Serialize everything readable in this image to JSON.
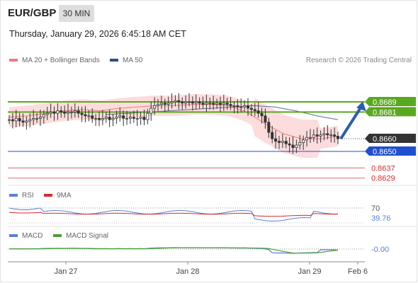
{
  "header": {
    "symbol": "EUR/GBP",
    "timeframe": "30 MIN",
    "datetime": "Thursday, January 29, 2026 6:45:18 AM CET"
  },
  "main_legend": [
    {
      "label": "MA 20 + Bollinger Bands",
      "color": "#f07b7b"
    },
    {
      "label": "MA 50",
      "color": "#2a4d8f"
    }
  ],
  "source": "Research © 2026 Trading Central",
  "rsi_legend": [
    {
      "label": "RSI",
      "color": "#5b7fd6"
    },
    {
      "label": "9MA",
      "color": "#d62a2a"
    }
  ],
  "macd_legend": [
    {
      "label": "MACD",
      "color": "#5b7fd6"
    },
    {
      "label": "MACD Signal",
      "color": "#4aa02c"
    }
  ],
  "chart_data": [
    {
      "type": "candlestick",
      "title": "EUR/GBP 30 MIN",
      "ylim": [
        0.8626,
        0.87
      ],
      "x_ticks": [
        "Jan 27",
        "Jan 28",
        "Jan 29",
        "Feb 6"
      ],
      "price_levels": [
        {
          "value": 0.8689,
          "label": "0.8689",
          "kind": "resistance",
          "color": "#5aa81f"
        },
        {
          "value": 0.8681,
          "label": "0.8681",
          "kind": "resistance",
          "color": "#5aa81f"
        },
        {
          "value": 0.866,
          "label": "0.8660",
          "kind": "last-price",
          "color": "#333333"
        },
        {
          "value": 0.865,
          "label": "0.8650",
          "kind": "pivot",
          "color": "#1f4fcf"
        },
        {
          "value": 0.8637,
          "label": "0.8637",
          "kind": "support",
          "color": "#d62a2a"
        },
        {
          "value": 0.8629,
          "label": "0.8629",
          "kind": "support",
          "color": "#d62a2a"
        }
      ],
      "close_series": [
        0.8675,
        0.8674,
        0.8676,
        0.8674,
        0.8673,
        0.8674,
        0.8675,
        0.8676,
        0.8676,
        0.8677,
        0.8679,
        0.868,
        0.8681,
        0.868,
        0.8682,
        0.8681,
        0.868,
        0.8681,
        0.8681,
        0.8682,
        0.868,
        0.8679,
        0.8678,
        0.8678,
        0.8676,
        0.8676,
        0.8675,
        0.8676,
        0.8677,
        0.8675,
        0.8676,
        0.8677,
        0.8678,
        0.8676,
        0.8676,
        0.8677,
        0.8676,
        0.8676,
        0.8677,
        0.8675,
        0.868,
        0.8684,
        0.8686,
        0.8687,
        0.8688,
        0.8687,
        0.8688,
        0.8689,
        0.869,
        0.8689,
        0.8688,
        0.8689,
        0.8689,
        0.8688,
        0.8689,
        0.8688,
        0.8687,
        0.8688,
        0.8688,
        0.8687,
        0.8688,
        0.8687,
        0.8688,
        0.8687,
        0.8686,
        0.8686,
        0.8685,
        0.8685,
        0.8686,
        0.8684,
        0.8683,
        0.8682,
        0.868,
        0.8678,
        0.8673,
        0.8665,
        0.866,
        0.8658,
        0.8657,
        0.8658,
        0.8656,
        0.8655,
        0.8653,
        0.8655,
        0.8657,
        0.8659,
        0.8661,
        0.8661,
        0.8663,
        0.8662,
        0.8663,
        0.8664,
        0.8663,
        0.8663,
        0.8662,
        0.866
      ],
      "ma20": [
        0.8677,
        0.8678,
        0.868,
        0.8682,
        0.8683,
        0.8682,
        0.8684,
        0.8685,
        0.8686,
        0.8686,
        0.8687,
        0.8687,
        0.8686,
        0.8681,
        0.8672,
        0.8664,
        0.866,
        0.866,
        0.8662
      ],
      "ma50": [
        0.8679,
        0.868,
        0.8681,
        0.8682,
        0.8683,
        0.8684,
        0.8685,
        0.8686,
        0.8685,
        0.8682,
        0.8678,
        0.8675
      ],
      "forecast": {
        "from": 0.866,
        "to": 0.8681
      }
    },
    {
      "type": "line",
      "title": "RSI",
      "series": [
        {
          "name": "RSI"
        },
        {
          "name": "9MA"
        }
      ],
      "levels": [
        70,
        30
      ],
      "tick_labels": [
        "70"
      ],
      "last_value": "39.76"
    },
    {
      "type": "line",
      "title": "MACD",
      "series": [
        {
          "name": "MACD"
        },
        {
          "name": "MACD Signal"
        }
      ],
      "levels": [
        0
      ],
      "last_value": "-0.00"
    }
  ]
}
